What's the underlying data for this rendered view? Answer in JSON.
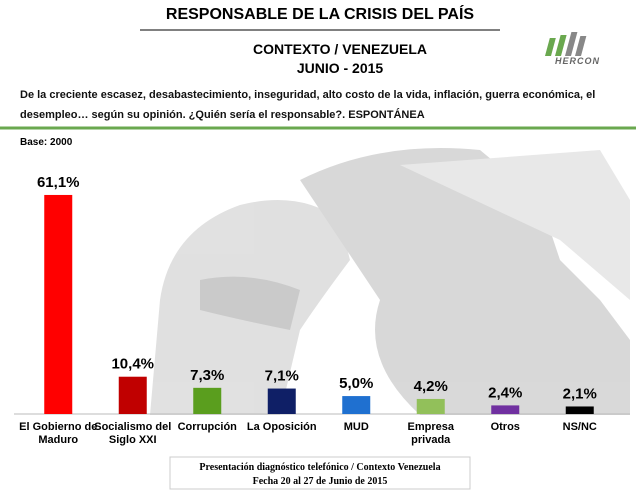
{
  "chart_data": {
    "type": "bar",
    "title": "RESPONSABLE DE LA CRISIS DEL PAÍS",
    "subtitle": "CONTEXTO / VENEZUELA",
    "period": "JUNIO - 2015",
    "logo": "HERCON",
    "question": "De la creciente escasez, desabastecimiento, inseguridad, alto costo de la vida, inflación, guerra económica, el desempleo… según su opinión. ¿Quién sería el responsable?. ESPONTÁNEA",
    "base": "Base: 2000",
    "categories": [
      "El Gobierno de Maduro",
      "Socialismo del Siglo XXI",
      "Corrupción",
      "La Oposición",
      "MUD",
      "Empresa privada",
      "Otros",
      "NS/NC"
    ],
    "values": [
      61.1,
      10.4,
      7.3,
      7.1,
      5.0,
      4.2,
      2.4,
      2.1
    ],
    "value_labels": [
      "61,1%",
      "10,4%",
      "7,3%",
      "7,1%",
      "5,0%",
      "4,2%",
      "2,4%",
      "2,1%"
    ],
    "colors": [
      "#ff0000",
      "#c00000",
      "#5a9e1e",
      "#0f1f66",
      "#1f70d0",
      "#92c05a",
      "#7030a0",
      "#000000"
    ],
    "footer": [
      "Presentación diagnóstico telefónico / Contexto Venezuela",
      "Fecha  20 al 27 de Junio de 2015"
    ]
  }
}
